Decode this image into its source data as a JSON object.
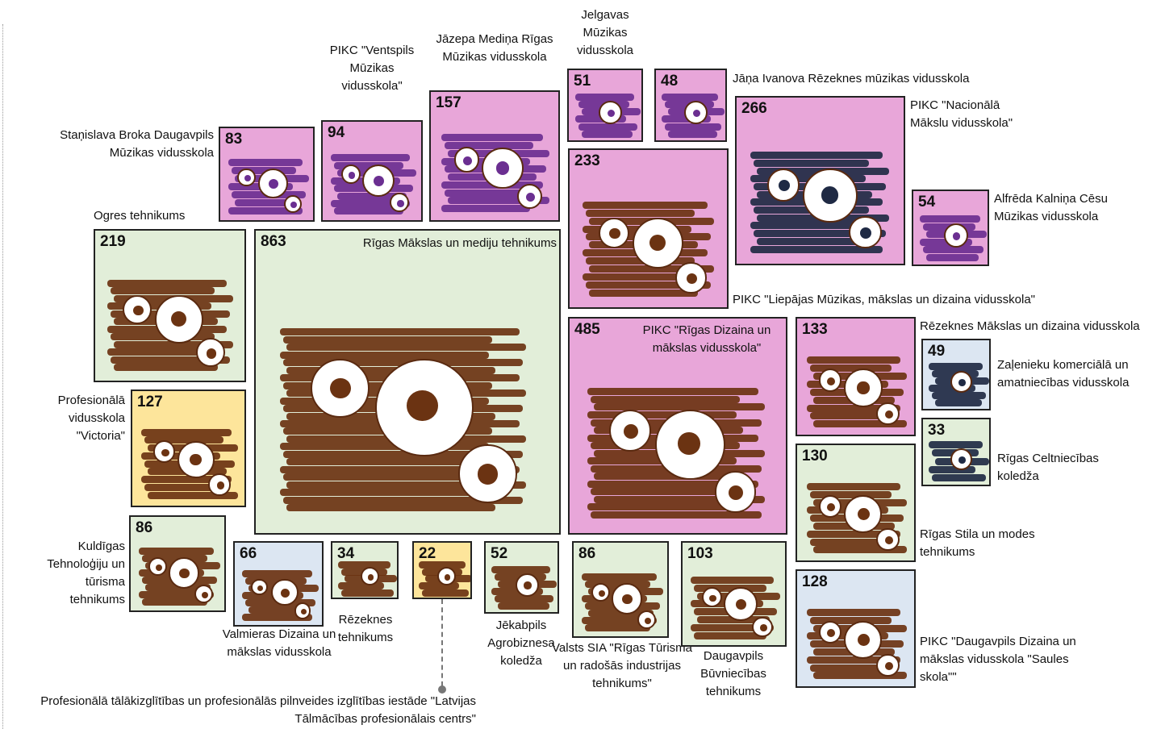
{
  "schools": [
    {
      "name": "Staņislava Broka Daugavpils Mūzikas vidusskola",
      "count": "83",
      "color": "#e8a6d9"
    },
    {
      "name": "PIKC \"Ventspils Mūzikas vidusskola\"",
      "count": "94",
      "color": "#e8a6d9"
    },
    {
      "name": "Jāzepa Mediņa Rīgas Mūzikas vidusskola",
      "count": "157",
      "color": "#e8a6d9"
    },
    {
      "name": "Jelgavas Mūzikas vidusskola",
      "count": "51",
      "color": "#e8a6d9"
    },
    {
      "name": "Jāņa Ivanova Rēzeknes mūzikas vidusskola",
      "count": "48",
      "color": "#e8a6d9"
    },
    {
      "name": "PIKC \"Nacionālā Mākslu vidusskola\"",
      "count": "266",
      "color": "#e8a6d9"
    },
    {
      "name": "Alfrēda Kalniņa Cēsu Mūzikas vidusskola",
      "count": "54",
      "color": "#e8a6d9"
    },
    {
      "name": "PIKC \"Liepājas Mūzikas, mākslas un dizaina vidusskola\"",
      "count": "233",
      "color": "#e8a6d9"
    },
    {
      "name": "Ogres tehnikums",
      "count": "219",
      "color": "#e2eed9"
    },
    {
      "name": "Rīgas Mākslas un mediju tehnikums",
      "count": "863",
      "color": "#e2eed9"
    },
    {
      "name": "Profesionālā vidusskola \"Victoria\"",
      "count": "127",
      "color": "#fde59b"
    },
    {
      "name": "PIKC \"Rīgas Dizaina un mākslas vidusskola\"",
      "count": "485",
      "color": "#e8a6d9"
    },
    {
      "name": "Rēzeknes Mākslas un dizaina vidusskola",
      "count": "133",
      "color": "#e8a6d9"
    },
    {
      "name": "Zaļenieku komerciālā un amatniecības vidusskola",
      "count": "49",
      "color": "#dce6f2"
    },
    {
      "name": "Rīgas Celtniecības koledža",
      "count": "33",
      "color": "#e2eed9"
    },
    {
      "name": "Rīgas Stila un modes tehnikums",
      "count": "130",
      "color": "#e2eed9"
    },
    {
      "name": "PIKC \"Daugavpils Dizaina un mākslas vidusskola \"Saules skola\"\"",
      "count": "128",
      "color": "#dce6f2"
    },
    {
      "name": "Kuldīgas Tehnoloģiju un tūrisma tehnikums",
      "count": "86",
      "color": "#e2eed9"
    },
    {
      "name": "Valmieras Dizaina un mākslas vidusskola",
      "count": "66",
      "color": "#dce6f2"
    },
    {
      "name": "Rēzeknes tehnikums",
      "count": "34",
      "color": "#e2eed9"
    },
    {
      "name": "Profesionālā tālākizglītības un profesionālās pilnveides izglītības iestāde \"Latvijas Tālmācības profesionālais centrs\"",
      "count": "22",
      "color": "#fde59b"
    },
    {
      "name": "Jēkabpils Agrobiznesa koledža",
      "count": "52",
      "color": "#e2eed9"
    },
    {
      "name": "Valsts SIA \"Rīgas Tūrisma un radošās industrijas tehnikums\"",
      "count": "86",
      "color": "#e2eed9"
    },
    {
      "name": "Daugavpils Būvniecības tehnikums",
      "count": "103",
      "color": "#e2eed9"
    }
  ]
}
